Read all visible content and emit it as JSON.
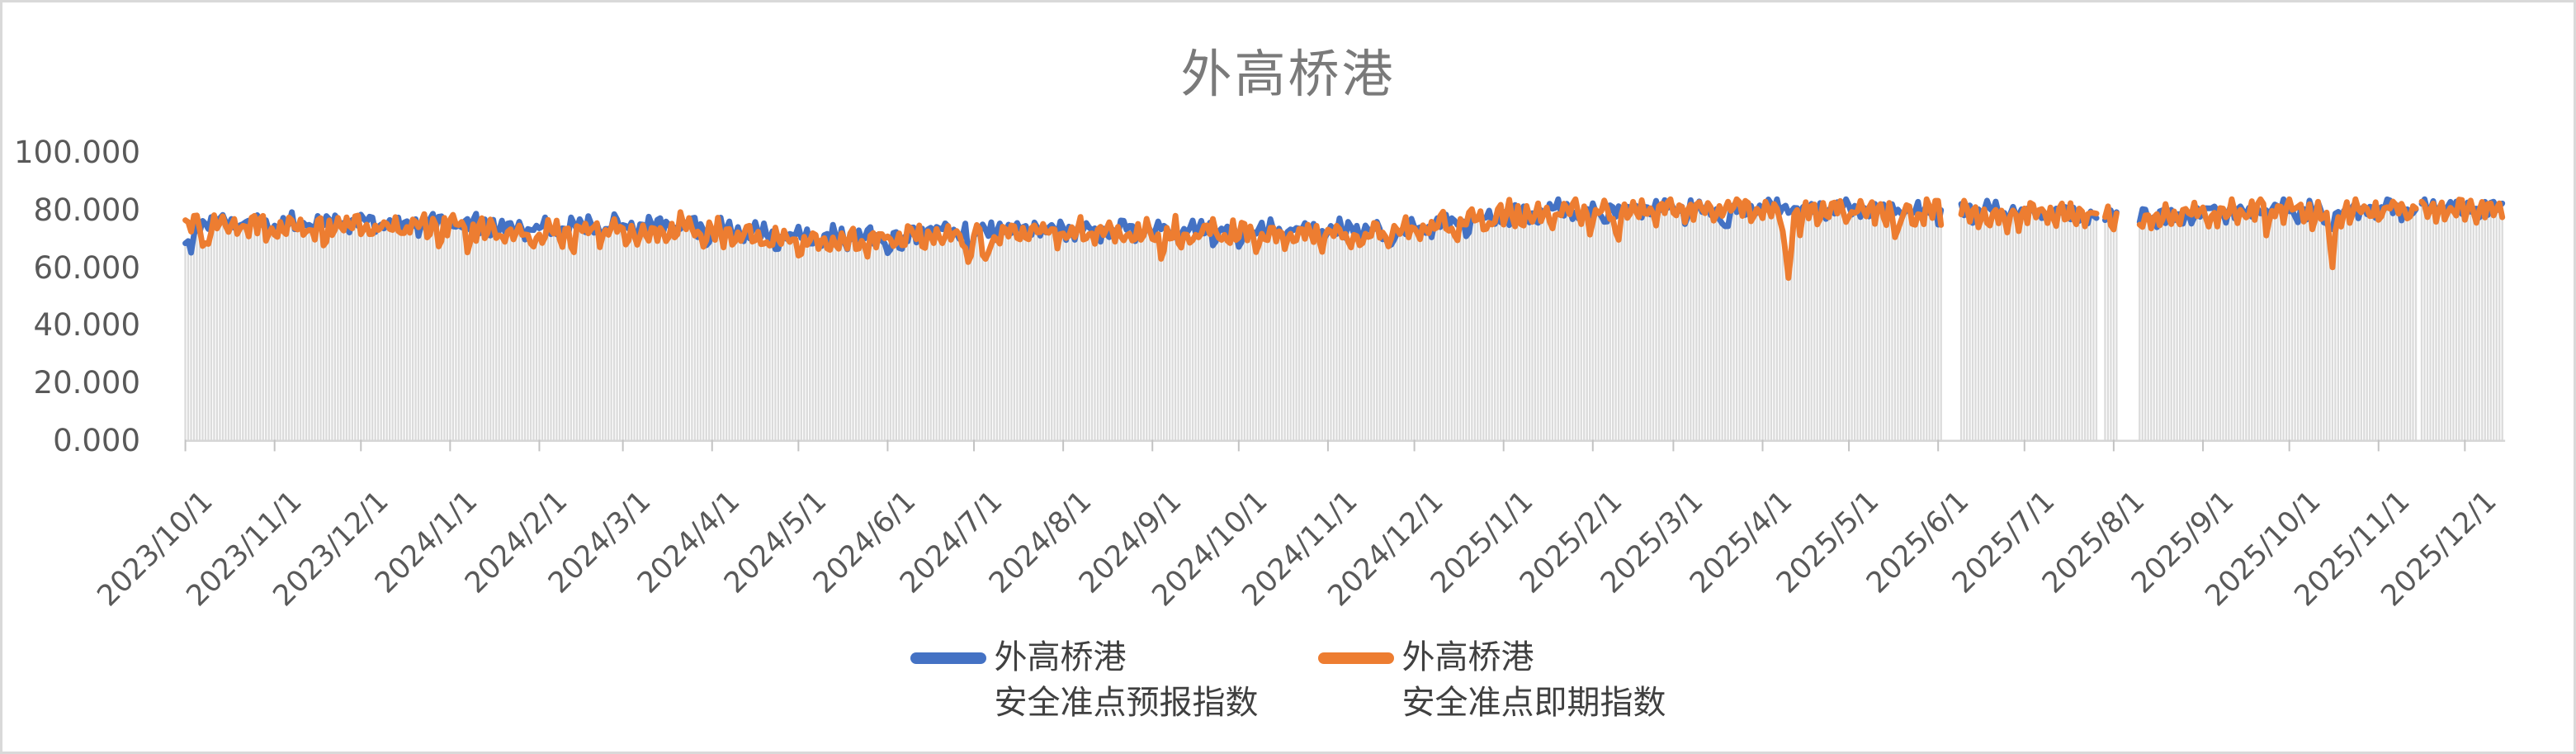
{
  "title": "外高桥港",
  "legend": [
    {
      "line1": "外高桥港",
      "line2": "安全准点预报指数",
      "color": "#4472C4"
    },
    {
      "line1": "外高桥港",
      "line2": "安全准点即期指数",
      "color": "#ED7D31"
    }
  ],
  "colors": {
    "axis_text": "#595959",
    "title_text": "#7A7A7A",
    "legend_text": "#404040",
    "axis_line": "#D6D6D6",
    "tick_mark": "#C3C3C3",
    "border": "#D9D9D9",
    "background_bars": "#DBDBDB"
  },
  "chart_data": {
    "type": "line",
    "title": "外高桥港",
    "xlabel": "",
    "ylabel": "",
    "ylim": [
      0,
      100
    ],
    "grid": false,
    "legend_position": "bottom-center",
    "y_ticks": [
      {
        "label": "0.000",
        "value": 0
      },
      {
        "label": "20.000",
        "value": 20
      },
      {
        "label": "40.000",
        "value": 40
      },
      {
        "label": "60.000",
        "value": 60
      },
      {
        "label": "80.000",
        "value": 80
      },
      {
        "label": "100.000",
        "value": 100
      }
    ],
    "x_start_date": "2023/10/1",
    "x_end_day": 806,
    "month_ticks": [
      {
        "label": "2023/10/1",
        "day": 0
      },
      {
        "label": "2023/11/1",
        "day": 31
      },
      {
        "label": "2023/12/1",
        "day": 61
      },
      {
        "label": "2024/1/1",
        "day": 92
      },
      {
        "label": "2024/2/1",
        "day": 123
      },
      {
        "label": "2024/3/1",
        "day": 152
      },
      {
        "label": "2024/4/1",
        "day": 183
      },
      {
        "label": "2024/5/1",
        "day": 213
      },
      {
        "label": "2024/6/1",
        "day": 244
      },
      {
        "label": "2024/7/1",
        "day": 274
      },
      {
        "label": "2024/8/1",
        "day": 305
      },
      {
        "label": "2024/9/1",
        "day": 336
      },
      {
        "label": "2024/10/1",
        "day": 366
      },
      {
        "label": "2024/11/1",
        "day": 397
      },
      {
        "label": "2024/12/1",
        "day": 427
      },
      {
        "label": "2025/1/1",
        "day": 458
      },
      {
        "label": "2025/2/1",
        "day": 489
      },
      {
        "label": "2025/3/1",
        "day": 517
      },
      {
        "label": "2025/4/1",
        "day": 548
      },
      {
        "label": "2025/5/1",
        "day": 578
      },
      {
        "label": "2025/6/1",
        "day": 609
      },
      {
        "label": "2025/7/1",
        "day": 639
      },
      {
        "label": "2025/8/1",
        "day": 670
      },
      {
        "label": "2025/9/1",
        "day": 701
      },
      {
        "label": "2025/10/1",
        "day": 731
      },
      {
        "label": "2025/11/1",
        "day": 762
      },
      {
        "label": "2025/12/1",
        "day": 792
      }
    ],
    "no_data_gaps_days": [
      [
        611,
        617
      ],
      [
        665,
        667
      ],
      [
        672,
        679
      ],
      [
        776,
        777
      ]
    ],
    "background_bars": {
      "color": "#DBDBDB",
      "derived_from": "min_of_series",
      "baseline": 0
    },
    "series": [
      {
        "name": "外高桥港 安全准点预报指数",
        "color": "#4472C4",
        "noise": 1.8,
        "wiggle": [
          [
            1.9,
            2.07,
            0.3
          ],
          [
            1.1,
            0.5,
            2.1
          ]
        ],
        "dip_prob_early": 0.022,
        "dip_prob_late": 0.012,
        "dip_depth": [
          4,
          5
        ],
        "events": [
          [
            1,
            9
          ],
          [
            745,
            5
          ]
        ],
        "clamp": [
          62,
          84
        ],
        "anchors": [
          [
            0,
            75
          ],
          [
            15,
            76
          ],
          [
            35,
            75
          ],
          [
            55,
            76
          ],
          [
            75,
            75
          ],
          [
            92,
            76
          ],
          [
            110,
            74
          ],
          [
            125,
            73
          ],
          [
            140,
            75
          ],
          [
            155,
            74.5
          ],
          [
            170,
            75
          ],
          [
            185,
            73.5
          ],
          [
            200,
            72
          ],
          [
            215,
            71
          ],
          [
            230,
            70.5
          ],
          [
            245,
            71.5
          ],
          [
            260,
            72.5
          ],
          [
            275,
            73.5
          ],
          [
            295,
            74
          ],
          [
            315,
            73.5
          ],
          [
            335,
            73
          ],
          [
            355,
            74
          ],
          [
            375,
            73
          ],
          [
            395,
            73.5
          ],
          [
            415,
            73
          ],
          [
            430,
            74
          ],
          [
            445,
            76
          ],
          [
            460,
            78
          ],
          [
            475,
            79.5
          ],
          [
            490,
            80
          ],
          [
            505,
            80.5
          ],
          [
            520,
            81
          ],
          [
            540,
            81
          ],
          [
            560,
            80.5
          ],
          [
            580,
            80.5
          ],
          [
            600,
            80
          ],
          [
            615,
            79.5
          ],
          [
            630,
            79
          ],
          [
            645,
            79.5
          ],
          [
            660,
            79
          ],
          [
            670,
            78.5
          ],
          [
            685,
            78
          ],
          [
            700,
            79.5
          ],
          [
            715,
            80
          ],
          [
            730,
            80.5
          ],
          [
            745,
            79
          ],
          [
            755,
            80
          ],
          [
            770,
            80.5
          ],
          [
            785,
            81
          ],
          [
            795,
            81
          ],
          [
            806,
            81.5
          ]
        ]
      },
      {
        "name": "外高桥港 安全准点即期指数",
        "color": "#ED7D31",
        "noise": 2.4,
        "wiggle": [
          [
            2.6,
            1.9,
            1.2
          ],
          [
            1.6,
            0.55,
            0.7
          ]
        ],
        "dip_prob_early": 0.05,
        "dip_prob_late": 0.022,
        "dip_depth": [
          5,
          9
        ],
        "events": [
          [
            557,
            19
          ],
          [
            497,
            7
          ],
          [
            745,
            6
          ]
        ],
        "clamp": [
          56,
          84
        ],
        "anchors": [
          [
            0,
            74
          ],
          [
            15,
            74.5
          ],
          [
            35,
            73.5
          ],
          [
            55,
            74.5
          ],
          [
            75,
            73.5
          ],
          [
            92,
            74.5
          ],
          [
            110,
            72.5
          ],
          [
            125,
            71
          ],
          [
            140,
            73.5
          ],
          [
            155,
            73
          ],
          [
            170,
            73.5
          ],
          [
            185,
            72
          ],
          [
            200,
            70
          ],
          [
            215,
            69
          ],
          [
            230,
            68.5
          ],
          [
            245,
            70
          ],
          [
            260,
            71
          ],
          [
            275,
            72
          ],
          [
            295,
            72.5
          ],
          [
            315,
            72
          ],
          [
            335,
            71.5
          ],
          [
            355,
            72.5
          ],
          [
            375,
            71.5
          ],
          [
            395,
            72
          ],
          [
            415,
            71.5
          ],
          [
            430,
            73
          ],
          [
            445,
            75.5
          ],
          [
            460,
            78
          ],
          [
            475,
            79.5
          ],
          [
            490,
            80
          ],
          [
            505,
            80
          ],
          [
            520,
            80.5
          ],
          [
            540,
            80.5
          ],
          [
            560,
            80
          ],
          [
            580,
            80
          ],
          [
            600,
            79.5
          ],
          [
            615,
            79
          ],
          [
            630,
            78.5
          ],
          [
            645,
            79
          ],
          [
            660,
            78.5
          ],
          [
            670,
            78
          ],
          [
            685,
            77.5
          ],
          [
            700,
            79.5
          ],
          [
            715,
            80
          ],
          [
            730,
            80.5
          ],
          [
            745,
            78.5
          ],
          [
            755,
            80
          ],
          [
            770,
            80.5
          ],
          [
            785,
            81
          ],
          [
            795,
            81
          ],
          [
            806,
            81.5
          ]
        ]
      }
    ]
  }
}
